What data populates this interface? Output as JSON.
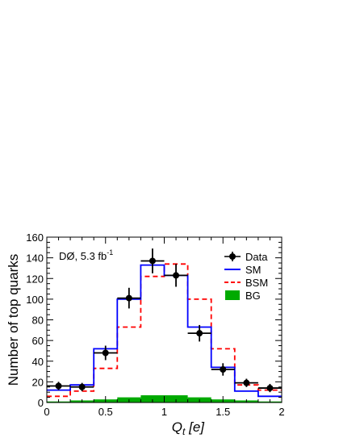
{
  "chart_data": {
    "type": "bar",
    "xlabel": "Q_t [e]",
    "xlabel_main": "Q",
    "xlabel_sub": "t",
    "xlabel_unit": " [e]",
    "ylabel": "Number of top quarks",
    "xlim": [
      0,
      2
    ],
    "ylim": [
      0,
      160
    ],
    "xticks": [
      0,
      0.5,
      1,
      1.5,
      2
    ],
    "xtick_labels": [
      "0",
      "0.5",
      "1",
      "1.5",
      "2"
    ],
    "yticks": [
      0,
      20,
      40,
      60,
      80,
      100,
      120,
      140,
      160
    ],
    "ytick_labels": [
      "0",
      "20",
      "40",
      "60",
      "80",
      "100",
      "120",
      "140",
      "160"
    ],
    "bin_edges": [
      0,
      0.2,
      0.4,
      0.6,
      0.8,
      1.0,
      1.2,
      1.4,
      1.6,
      1.8,
      2.0
    ],
    "annotation": "DØ, 5.3 fb",
    "annotation_sup": "-1",
    "legend_position": "top-right",
    "series": [
      {
        "name": "Data",
        "style": "points",
        "color": "#000000",
        "x": [
          0.1,
          0.3,
          0.5,
          0.7,
          0.9,
          1.1,
          1.3,
          1.5,
          1.7,
          1.9
        ],
        "values": [
          16,
          15,
          48,
          101,
          137,
          123,
          67,
          32,
          19,
          14
        ],
        "errors": [
          4,
          4,
          7,
          10,
          12,
          11,
          8,
          6,
          4,
          4
        ]
      },
      {
        "name": "SM",
        "style": "step",
        "color": "#0000ff",
        "values": [
          12,
          17,
          52,
          100,
          133,
          123,
          73,
          34,
          11,
          6
        ]
      },
      {
        "name": "BSM",
        "style": "dashed-step",
        "color": "#ff0000",
        "values": [
          6,
          11,
          33,
          73,
          122,
          134,
          100,
          52,
          17,
          12
        ]
      },
      {
        "name": "BG",
        "style": "filled",
        "color": "#00aa00",
        "values": [
          1.0,
          2.0,
          3.0,
          5.0,
          7.0,
          7.0,
          5.0,
          3.0,
          2.0,
          1.0
        ]
      }
    ]
  }
}
